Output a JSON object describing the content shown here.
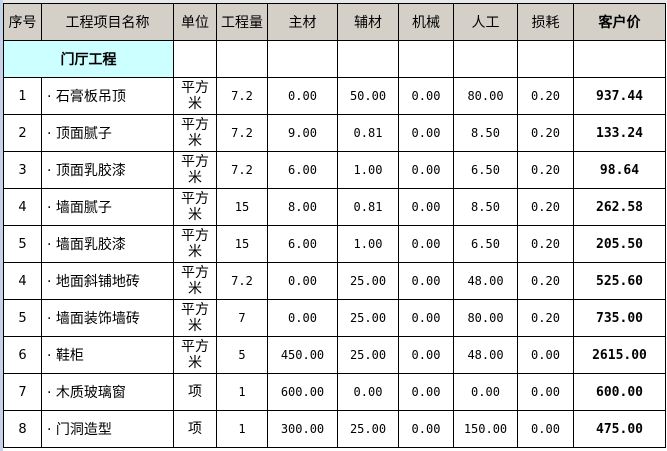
{
  "headers": [
    "序号",
    "工程项目名称",
    "单位",
    "工程量",
    "主材",
    "辅材",
    "机械",
    "人工",
    "损耗",
    "客户价"
  ],
  "section": "门厅工程",
  "rows": [
    {
      "no": "1",
      "name": "· 石膏板吊顶",
      "unit": "平方米",
      "qty": "7.2",
      "main": "0.00",
      "aux": "50.00",
      "mach": "0.00",
      "labor": "80.00",
      "loss": "0.20",
      "price": "937.44"
    },
    {
      "no": "2",
      "name": "· 顶面腻子",
      "unit": "平方米",
      "qty": "7.2",
      "main": "9.00",
      "aux": "0.81",
      "mach": "0.00",
      "labor": "8.50",
      "loss": "0.20",
      "price": "133.24"
    },
    {
      "no": "3",
      "name": "· 顶面乳胶漆",
      "unit": "平方米",
      "qty": "7.2",
      "main": "6.00",
      "aux": "1.00",
      "mach": "0.00",
      "labor": "6.50",
      "loss": "0.20",
      "price": "98.64"
    },
    {
      "no": "4",
      "name": "· 墙面腻子",
      "unit": "平方米",
      "qty": "15",
      "main": "8.00",
      "aux": "0.81",
      "mach": "0.00",
      "labor": "8.50",
      "loss": "0.20",
      "price": "262.58"
    },
    {
      "no": "5",
      "name": "· 墙面乳胶漆",
      "unit": "平方米",
      "qty": "15",
      "main": "6.00",
      "aux": "1.00",
      "mach": "0.00",
      "labor": "6.50",
      "loss": "0.20",
      "price": "205.50"
    },
    {
      "no": "4",
      "name": "· 地面斜铺地砖",
      "unit": "平方米",
      "qty": "7.2",
      "main": "0.00",
      "aux": "25.00",
      "mach": "0.00",
      "labor": "48.00",
      "loss": "0.20",
      "price": "525.60"
    },
    {
      "no": "5",
      "name": "· 墙面装饰墙砖",
      "unit": "平方米",
      "qty": "7",
      "main": "0.00",
      "aux": "25.00",
      "mach": "0.00",
      "labor": "80.00",
      "loss": "0.20",
      "price": "735.00"
    },
    {
      "no": "6",
      "name": "· 鞋柜",
      "unit": "平方米",
      "qty": "5",
      "main": "450.00",
      "aux": "25.00",
      "mach": "0.00",
      "labor": "48.00",
      "loss": "0.00",
      "price": "2615.00"
    },
    {
      "no": "7",
      "name": "· 木质玻璃窗",
      "unit": "项",
      "qty": "1",
      "main": "600.00",
      "aux": "0.00",
      "mach": "0.00",
      "labor": "0.00",
      "loss": "0.00",
      "price": "600.00"
    },
    {
      "no": "8",
      "name": "· 门洞造型",
      "unit": "项",
      "qty": "1",
      "main": "300.00",
      "aux": "25.00",
      "mach": "0.00",
      "labor": "150.00",
      "loss": "0.00",
      "price": "475.00"
    }
  ],
  "colors": {
    "header_bg": "#d4d0c8",
    "section_bg": "#ccffff"
  }
}
